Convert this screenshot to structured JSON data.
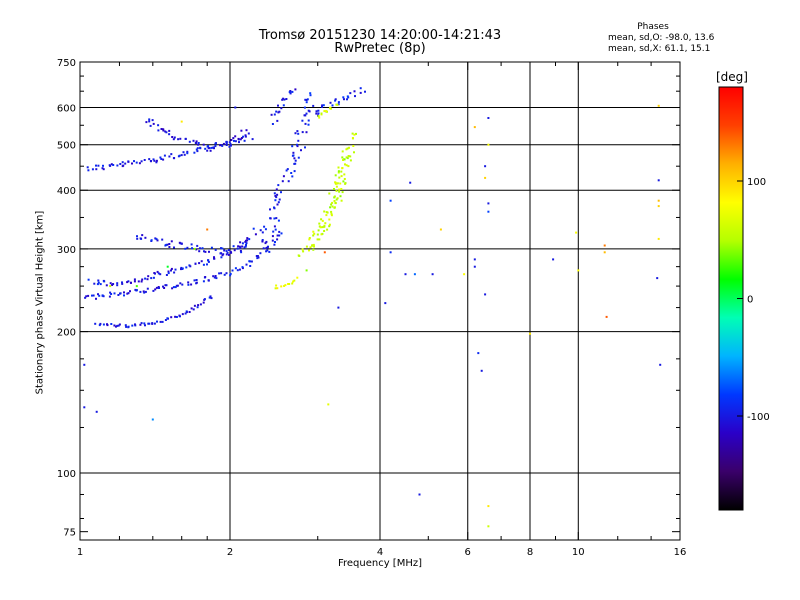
{
  "header": {
    "title_line1": "Tromsø 20151230 14:20:00-14:21:43",
    "title_line2": "RwPretec (8p)",
    "stats_title": "Phases",
    "stats_o": "mean, sd,O: -98.0, 13.6",
    "stats_x": "mean, sd,X:  61.1, 15.1"
  },
  "colorbar": {
    "unit_label": "[deg]",
    "ticks": [
      {
        "value": 100,
        "label": "100"
      },
      {
        "value": 0,
        "label": "0"
      },
      {
        "value": -100,
        "label": "-100"
      }
    ],
    "range": [
      -180,
      180
    ],
    "colormap": [
      "#000000",
      "#3a006a",
      "#2a00c8",
      "#0038ff",
      "#00b4ff",
      "#00ffb4",
      "#00ff00",
      "#b4ff00",
      "#ffff00",
      "#ffb000",
      "#ff4000",
      "#ff0000"
    ]
  },
  "chart_data": {
    "type": "scatter",
    "xlabel": "Frequency [MHz]",
    "ylabel": "Stationary phase Virtual Height [km]",
    "xscale": "log",
    "yscale": "log",
    "xlim": [
      1,
      16
    ],
    "ylim": [
      72,
      750
    ],
    "xticks": [
      {
        "value": 1,
        "label": "1"
      },
      {
        "value": 2,
        "label": "2"
      },
      {
        "value": 4,
        "label": "4"
      },
      {
        "value": 6,
        "label": "6"
      },
      {
        "value": 8,
        "label": "8"
      },
      {
        "value": 10,
        "label": "10"
      },
      {
        "value": 16,
        "label": "16"
      }
    ],
    "xgrid": [
      2,
      4,
      6,
      8,
      10
    ],
    "xminor": [
      1.2,
      1.4,
      1.6,
      1.8,
      3,
      5,
      7,
      9,
      12,
      14
    ],
    "yticks": [
      {
        "value": 75,
        "label": "75"
      },
      {
        "value": 100,
        "label": "100"
      },
      {
        "value": 200,
        "label": "200"
      },
      {
        "value": 300,
        "label": "300"
      },
      {
        "value": 400,
        "label": "400"
      },
      {
        "value": 500,
        "label": "500"
      },
      {
        "value": 600,
        "label": "600"
      },
      {
        "value": 750,
        "label": "750"
      }
    ],
    "ygrid": [
      100,
      200,
      300,
      400,
      500,
      600
    ],
    "yminor": [
      80,
      90,
      125,
      150,
      175,
      225,
      250,
      275,
      350,
      450,
      550,
      650,
      700
    ],
    "grid": true,
    "color_variable": "Phase [deg]",
    "traces": [
      {
        "mode": "O",
        "phase": -100,
        "spread": 6,
        "x": [
          1.03,
          1.1,
          1.25,
          1.45,
          1.7,
          1.95,
          2.2
        ],
        "y": [
          445,
          448,
          455,
          468,
          482,
          500,
          520
        ]
      },
      {
        "mode": "O",
        "phase": -105,
        "spread": 6,
        "x": [
          1.35,
          1.55,
          1.8,
          2.0,
          2.2
        ],
        "y": [
          565,
          520,
          495,
          500,
          540
        ]
      },
      {
        "mode": "O",
        "phase": -100,
        "spread": 5,
        "x": [
          1.02,
          1.15,
          1.35,
          1.55,
          1.75,
          1.95,
          2.15,
          2.35,
          2.55
        ],
        "y": [
          235,
          240,
          245,
          250,
          257,
          265,
          277,
          295,
          330
        ]
      },
      {
        "mode": "O",
        "phase": -100,
        "spread": 5,
        "x": [
          1.05,
          1.2,
          1.4,
          1.6,
          1.8,
          2.0,
          2.2
        ],
        "y": [
          255,
          252,
          262,
          272,
          282,
          295,
          315
        ]
      },
      {
        "mode": "O",
        "phase": -100,
        "spread": 3,
        "x": [
          1.08,
          1.25,
          1.45,
          1.65,
          1.85
        ],
        "y": [
          208,
          205,
          210,
          220,
          240
        ]
      },
      {
        "mode": "O",
        "phase": -100,
        "spread": 8,
        "x": [
          1.3,
          1.5,
          1.7,
          1.9,
          2.1,
          2.3
        ],
        "y": [
          320,
          310,
          300,
          295,
          300,
          330
        ]
      },
      {
        "mode": "O",
        "phase": -98,
        "spread": 10,
        "x": [
          2.35,
          2.45,
          2.6,
          2.75,
          2.85
        ],
        "y": [
          300,
          360,
          430,
          500,
          600
        ]
      },
      {
        "mode": "O",
        "phase": -100,
        "spread": 6,
        "x": [
          2.45,
          2.6,
          2.75
        ],
        "y": [
          560,
          640,
          650
        ]
      },
      {
        "mode": "O",
        "phase": -95,
        "spread": 6,
        "x": [
          2.85,
          2.95,
          3.1,
          3.4,
          3.7
        ],
        "y": [
          640,
          580,
          600,
          630,
          660
        ]
      },
      {
        "mode": "X",
        "phase": 60,
        "spread": 8,
        "x": [
          2.8,
          3.0,
          3.2,
          3.4,
          3.55
        ],
        "y": [
          290,
          320,
          380,
          450,
          540
        ]
      },
      {
        "mode": "X",
        "phase": 55,
        "spread": 8,
        "x": [
          2.9,
          3.1,
          3.3,
          3.5
        ],
        "y": [
          300,
          340,
          400,
          480
        ]
      },
      {
        "mode": "X",
        "phase": 75,
        "spread": 3,
        "x": [
          2.45,
          2.6,
          2.75
        ],
        "y": [
          248,
          252,
          260
        ]
      },
      {
        "mode": "X",
        "phase": 65,
        "spread": 4,
        "x": [
          3.0,
          3.15,
          3.3
        ],
        "y": [
          570,
          590,
          610
        ]
      }
    ],
    "scattered_points": [
      {
        "x": 1.02,
        "y": 138,
        "phase": -100
      },
      {
        "x": 1.08,
        "y": 135,
        "phase": -100
      },
      {
        "x": 1.4,
        "y": 130,
        "phase": -60
      },
      {
        "x": 1.02,
        "y": 170,
        "phase": -100
      },
      {
        "x": 4.1,
        "y": 230,
        "phase": -100
      },
      {
        "x": 4.2,
        "y": 295,
        "phase": -90
      },
      {
        "x": 4.5,
        "y": 265,
        "phase": -100
      },
      {
        "x": 4.7,
        "y": 265,
        "phase": -70
      },
      {
        "x": 4.6,
        "y": 415,
        "phase": -100
      },
      {
        "x": 4.2,
        "y": 380,
        "phase": -80
      },
      {
        "x": 5.1,
        "y": 265,
        "phase": -100
      },
      {
        "x": 5.3,
        "y": 330,
        "phase": 100
      },
      {
        "x": 3.3,
        "y": 225,
        "phase": -100
      },
      {
        "x": 3.35,
        "y": 380,
        "phase": 60
      },
      {
        "x": 3.15,
        "y": 140,
        "phase": 70
      },
      {
        "x": 4.8,
        "y": 90,
        "phase": -100
      },
      {
        "x": 5.9,
        "y": 265,
        "phase": 80
      },
      {
        "x": 6.2,
        "y": 275,
        "phase": -100
      },
      {
        "x": 6.2,
        "y": 285,
        "phase": -100
      },
      {
        "x": 6.3,
        "y": 180,
        "phase": -90
      },
      {
        "x": 6.4,
        "y": 165,
        "phase": -100
      },
      {
        "x": 6.6,
        "y": 570,
        "phase": -100
      },
      {
        "x": 6.6,
        "y": 500,
        "phase": 80
      },
      {
        "x": 6.5,
        "y": 240,
        "phase": -100
      },
      {
        "x": 6.6,
        "y": 375,
        "phase": -100
      },
      {
        "x": 6.6,
        "y": 360,
        "phase": -80
      },
      {
        "x": 6.6,
        "y": 85,
        "phase": 90
      },
      {
        "x": 6.6,
        "y": 77,
        "phase": 60
      },
      {
        "x": 6.2,
        "y": 545,
        "phase": 110
      },
      {
        "x": 6.5,
        "y": 450,
        "phase": -100
      },
      {
        "x": 6.5,
        "y": 425,
        "phase": 100
      },
      {
        "x": 8.0,
        "y": 198,
        "phase": 90
      },
      {
        "x": 8.9,
        "y": 285,
        "phase": -100
      },
      {
        "x": 9.9,
        "y": 325,
        "phase": 80
      },
      {
        "x": 10.0,
        "y": 270,
        "phase": 80
      },
      {
        "x": 11.3,
        "y": 305,
        "phase": 130
      },
      {
        "x": 11.3,
        "y": 295,
        "phase": 110
      },
      {
        "x": 11.4,
        "y": 215,
        "phase": 140
      },
      {
        "x": 14.5,
        "y": 605,
        "phase": 100
      },
      {
        "x": 14.5,
        "y": 420,
        "phase": -100
      },
      {
        "x": 14.5,
        "y": 380,
        "phase": 110
      },
      {
        "x": 14.5,
        "y": 370,
        "phase": 100
      },
      {
        "x": 14.5,
        "y": 315,
        "phase": 90
      },
      {
        "x": 14.4,
        "y": 260,
        "phase": -100
      },
      {
        "x": 14.6,
        "y": 170,
        "phase": -100
      },
      {
        "x": 1.6,
        "y": 560,
        "phase": 90
      },
      {
        "x": 1.8,
        "y": 330,
        "phase": 130
      },
      {
        "x": 1.7,
        "y": 300,
        "phase": 40
      },
      {
        "x": 1.5,
        "y": 275,
        "phase": 10
      },
      {
        "x": 1.3,
        "y": 250,
        "phase": 30
      },
      {
        "x": 1.15,
        "y": 250,
        "phase": 60
      },
      {
        "x": 2.05,
        "y": 600,
        "phase": -100
      },
      {
        "x": 2.85,
        "y": 270,
        "phase": 40
      },
      {
        "x": 3.1,
        "y": 295,
        "phase": 140
      }
    ]
  }
}
